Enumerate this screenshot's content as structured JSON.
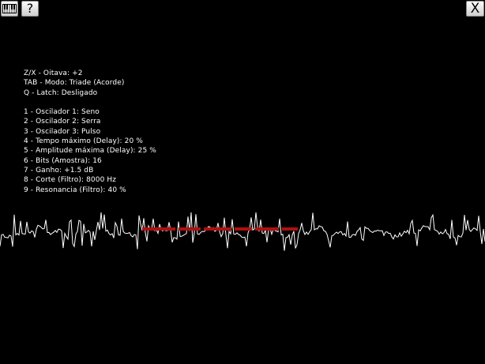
{
  "toolbar": {
    "keyboard_icon": "piano-keys-icon",
    "help_label": "?",
    "close_label": "X"
  },
  "info": {
    "octave": "Z/X - Oitava: +2",
    "mode": "TAB - Modo: Triade (Acorde)",
    "latch": "Q - Latch: Desligado",
    "osc1": "1 - Oscilador 1: Seno",
    "osc2": "2 - Oscilador 2: Serra",
    "osc3": "3 - Oscilador 3: Pulso",
    "delay_time": "4 - Tempo máximo (Delay): 20 %",
    "delay_amp": "5 - Amplitude máxima (Delay): 25 %",
    "bits": "6 - Bits (Amostra): 16",
    "gain": "7 - Ganho: +1.5 dB",
    "cutoff": "8 - Corte (Filtro): 8000 Hz",
    "resonance": "9 - Resonancia (Filtro): 40 %"
  },
  "waveform": {
    "color": "#ffffff",
    "overlay_color": "#b01010"
  }
}
